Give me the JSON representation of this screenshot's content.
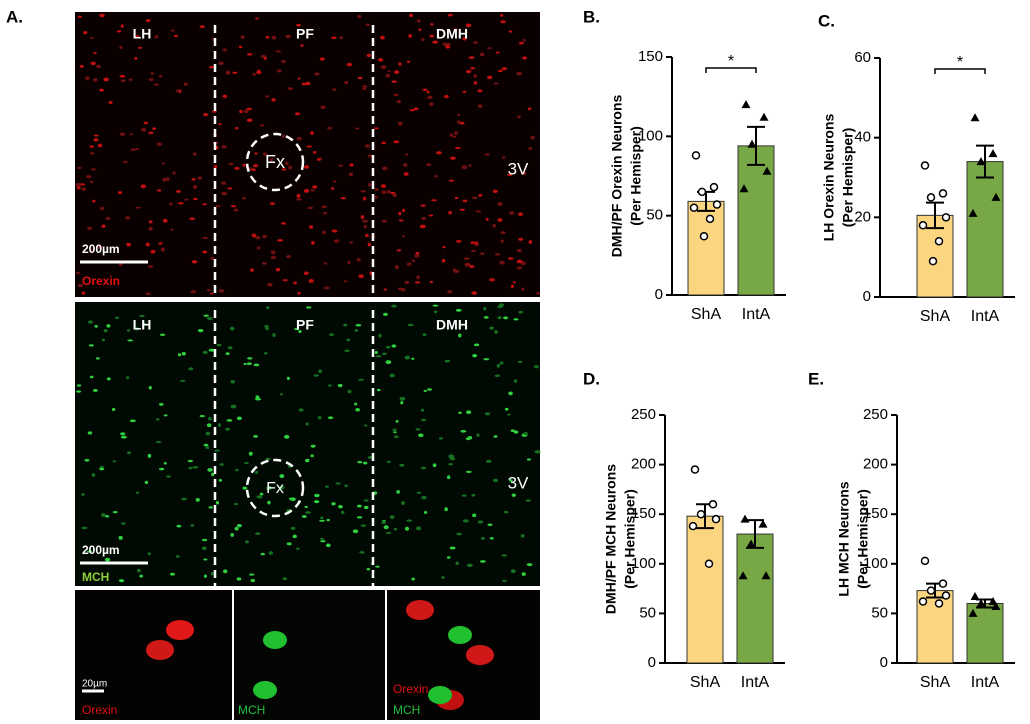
{
  "panel_labels": [
    "A.",
    "B.",
    "C.",
    "D.",
    "E."
  ],
  "images": {
    "orexin": {
      "regions": [
        "LH",
        "PF",
        "DMH"
      ],
      "fx": "Fx",
      "ventricle": "3V",
      "scale": "200µm",
      "stain": "Orexin"
    },
    "mch": {
      "regions": [
        "LH",
        "PF",
        "DMH"
      ],
      "fx": "Fx",
      "ventricle": "3V",
      "scale": "200µm",
      "stain": "MCH"
    },
    "detail": {
      "scale": "20µm",
      "stains": [
        [
          "Orexin"
        ],
        [
          "MCH"
        ],
        [
          "Orexin",
          "MCH"
        ]
      ]
    }
  },
  "chart_data": [
    {
      "type": "bar",
      "ylabel": [
        "DMH/PF Orexin Neurons",
        "(Per Hemisper)"
      ],
      "categories": [
        "ShA",
        "IntA"
      ],
      "values": [
        59,
        94
      ],
      "errors": [
        6,
        12
      ],
      "points": [
        [
          88,
          68,
          65,
          57,
          55,
          48,
          37
        ],
        [
          120,
          112,
          95,
          78,
          67
        ]
      ],
      "colors": [
        "#fbd580",
        "#78a845"
      ],
      "ylim": [
        0,
        150
      ],
      "yticks": [
        0,
        50,
        100,
        150
      ],
      "significance": "*"
    },
    {
      "type": "bar",
      "ylabel": [
        "LH Orexin Neurons",
        "(Per Hemisper)"
      ],
      "categories": [
        "ShA",
        "IntA"
      ],
      "values": [
        20.5,
        34
      ],
      "errors": [
        3.2,
        4
      ],
      "points": [
        [
          33,
          26,
          25,
          20,
          18,
          14,
          9
        ],
        [
          45,
          36,
          34,
          25,
          21
        ]
      ],
      "colors": [
        "#fbd580",
        "#78a845"
      ],
      "ylim": [
        0,
        60
      ],
      "yticks": [
        0,
        20,
        40,
        60
      ],
      "significance": "*"
    },
    {
      "type": "bar",
      "ylabel": [
        "DMH/PF MCH Neurons",
        "(Per Hemisper)"
      ],
      "categories": [
        "ShA",
        "IntA"
      ],
      "values": [
        148,
        130
      ],
      "errors": [
        12,
        14
      ],
      "points": [
        [
          195,
          160,
          150,
          145,
          138,
          100
        ],
        [
          145,
          140,
          120,
          88,
          88
        ]
      ],
      "colors": [
        "#fbd580",
        "#78a845"
      ],
      "ylim": [
        0,
        250
      ],
      "yticks": [
        0,
        50,
        100,
        150,
        200,
        250
      ]
    },
    {
      "type": "bar",
      "ylabel": [
        "LH MCH Neurons",
        "(Per Hemisper)"
      ],
      "categories": [
        "ShA",
        "IntA"
      ],
      "values": [
        73,
        60
      ],
      "errors": [
        7,
        4
      ],
      "points": [
        [
          103,
          80,
          73,
          68,
          62,
          60
        ],
        [
          67,
          62,
          60,
          57,
          50
        ]
      ],
      "colors": [
        "#fbd580",
        "#78a845"
      ],
      "ylim": [
        0,
        250
      ],
      "yticks": [
        0,
        50,
        100,
        150,
        200,
        250
      ]
    }
  ]
}
